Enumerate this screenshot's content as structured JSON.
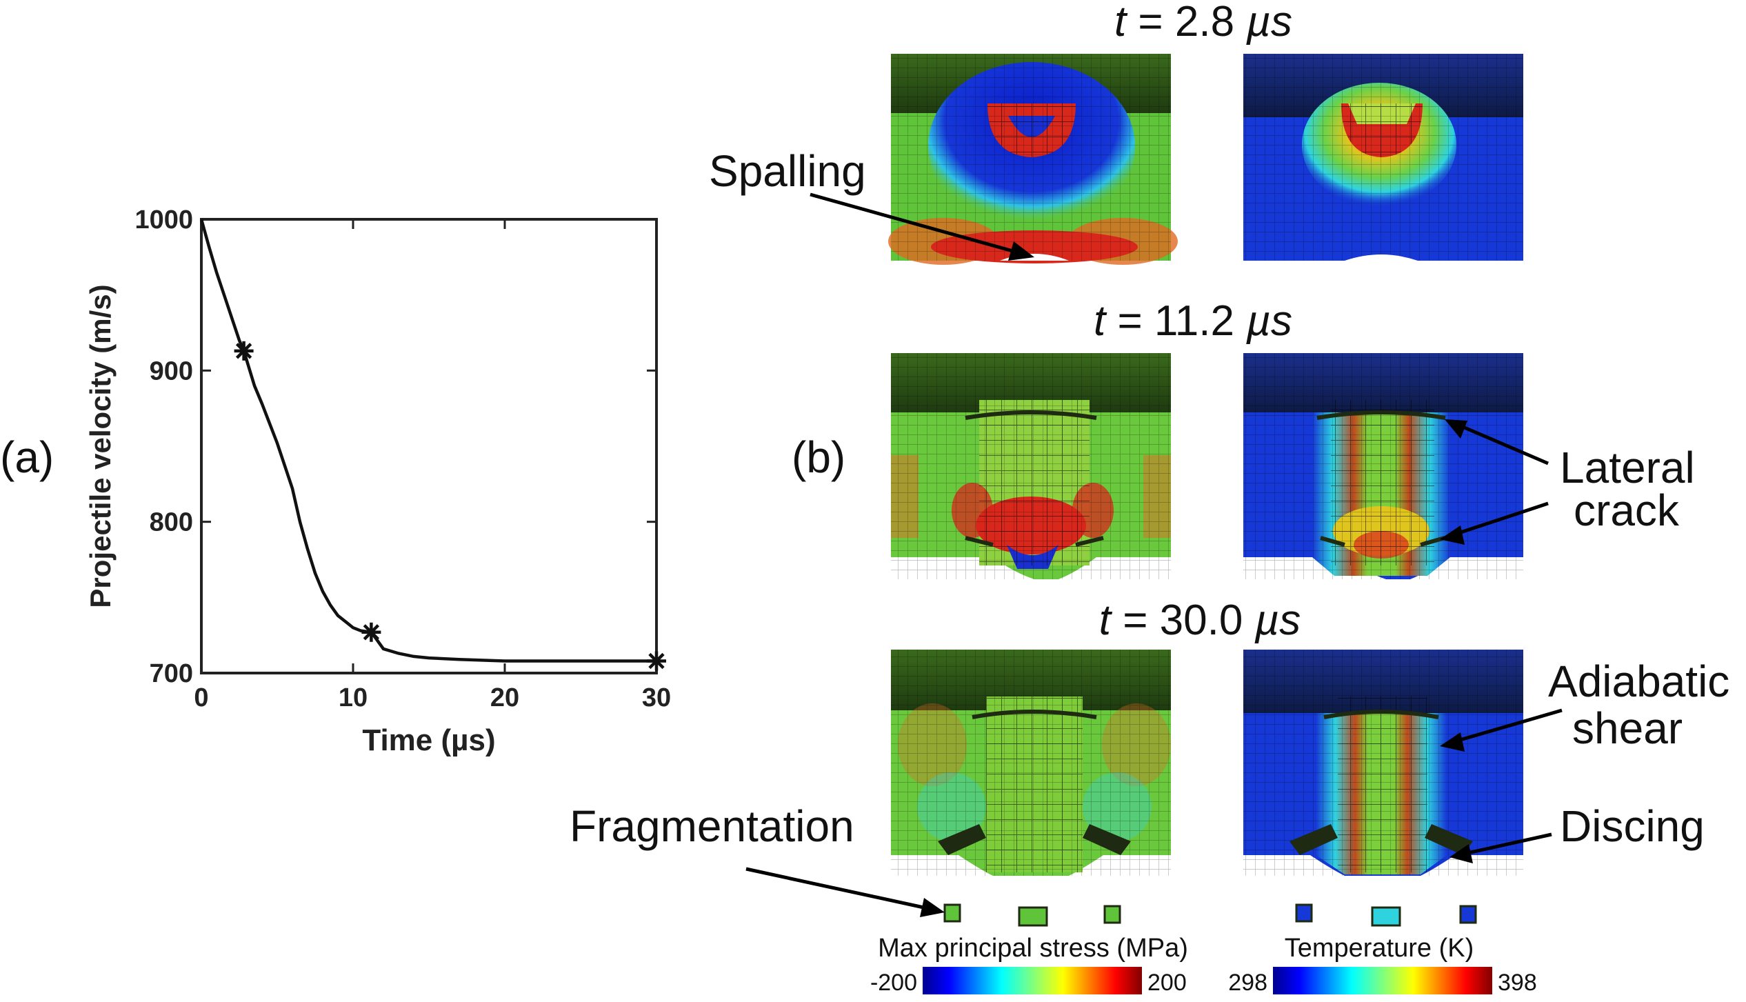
{
  "panel_a": {
    "label": "(a)",
    "chart_data": {
      "type": "line",
      "title": "",
      "xlabel": "Time (µs)",
      "ylabel": "Projectile velocity (m/s)",
      "xlim": [
        0,
        30
      ],
      "ylim": [
        700,
        1000
      ],
      "xticks": [
        0,
        10,
        20,
        30
      ],
      "yticks": [
        700,
        800,
        900,
        1000
      ],
      "grid": false,
      "series": [
        {
          "x": [
            0,
            0.5,
            1,
            1.5,
            2,
            2.5,
            2.8,
            3.5,
            4,
            5,
            6,
            6.5,
            7,
            7.5,
            8,
            8.5,
            9,
            9.5,
            10,
            10.5,
            11.2,
            11.5,
            12,
            13,
            14,
            15,
            17,
            20,
            25,
            30
          ],
          "values": [
            1000,
            982,
            965,
            950,
            935,
            920,
            913,
            890,
            878,
            852,
            822,
            800,
            782,
            766,
            754,
            745,
            738,
            734,
            730,
            728,
            727,
            723,
            716,
            713,
            711,
            710,
            709,
            708,
            708,
            708
          ]
        }
      ],
      "markers": {
        "style": "star",
        "x": [
          2.8,
          11.2,
          30.0
        ],
        "y": [
          913,
          727,
          708
        ]
      }
    }
  },
  "panel_b": {
    "label": "(b)",
    "time_labels": [
      {
        "t": "t",
        "rest": " = 2.8 ",
        "unit": "µs"
      },
      {
        "t": "t",
        "rest": " = 11.2 ",
        "unit": "µs"
      },
      {
        "t": "t",
        "rest": " = 30.0 ",
        "unit": "µs"
      }
    ],
    "annotations": {
      "spalling": "Spalling",
      "lateral_1": "Lateral",
      "lateral_2": "crack",
      "adiabatic_1": "Adiabatic",
      "adiabatic_2": "shear",
      "discing": "Discing",
      "fragmentation": "Fragmentation"
    },
    "colorbars": [
      {
        "title": "Max principal stress (MPa)",
        "min": "-200",
        "max": "200"
      },
      {
        "title": "Temperature (K)",
        "min": "298",
        "max": "398"
      }
    ],
    "colors": {
      "jet_blue": "#0a1fd0",
      "jet_cyan": "#2fd3e0",
      "jet_green": "#5fc43a",
      "jet_yellow": "#e6e11c",
      "jet_red": "#d8271b",
      "dark_mesh": "#1f2a12"
    }
  }
}
